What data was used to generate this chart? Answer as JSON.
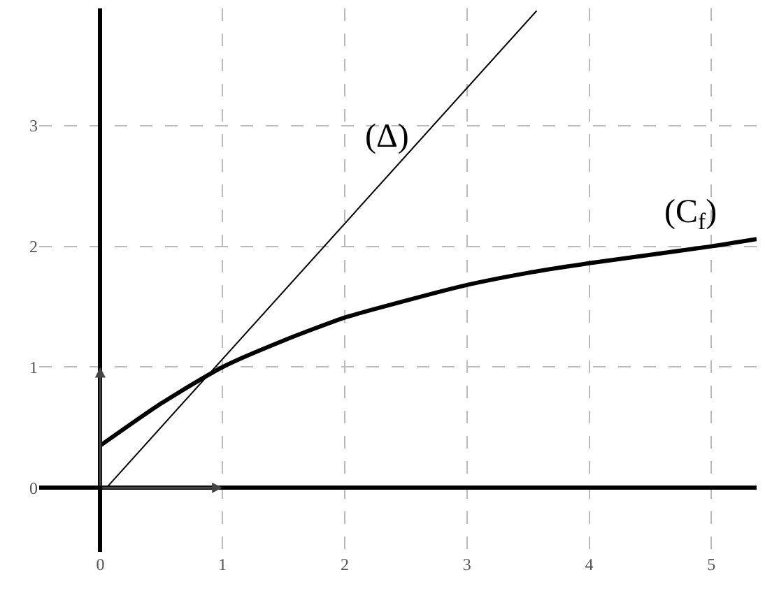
{
  "chart_data": {
    "type": "line",
    "series": [
      {
        "name": "(Δ)",
        "color": "#000000",
        "x": [
          0.05,
          3.57
        ],
        "values": [
          0,
          3.95
        ]
      },
      {
        "name": "(C$_{f}$)",
        "color": "#000000",
        "x": [
          0,
          0.5,
          1,
          1.5,
          2,
          2.5,
          3,
          3.5,
          4,
          4.5,
          5,
          5.37
        ],
        "values": [
          0.35,
          0.7,
          1.0,
          1.22,
          1.41,
          1.55,
          1.68,
          1.78,
          1.86,
          1.93,
          2.0,
          2.06
        ]
      }
    ],
    "xlim": [
      -0.5,
      5.37
    ],
    "ylim": [
      -0.53,
      3.97
    ],
    "xticks": [
      0,
      1,
      2,
      3,
      4,
      5
    ],
    "yticks": [
      0,
      1,
      2,
      3
    ],
    "grid": true,
    "marker": "none",
    "line_style": "solid",
    "legend": false
  }
}
